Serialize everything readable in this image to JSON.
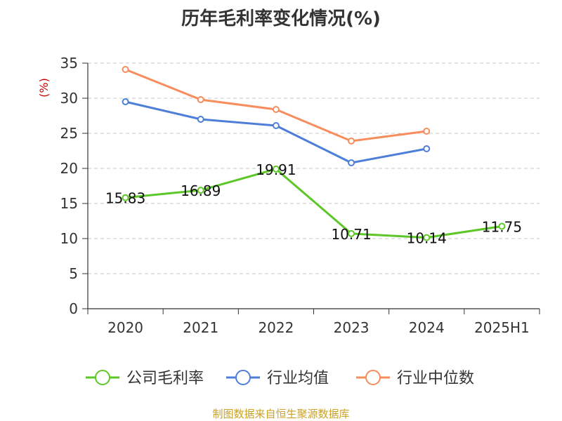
{
  "chart_data": {
    "type": "line",
    "title": "历年毛利率变化情况(%)",
    "ylabel": "(%)",
    "xlabel": "",
    "categories": [
      "2020",
      "2021",
      "2022",
      "2023",
      "2024",
      "2025H1"
    ],
    "ylim": [
      0,
      35
    ],
    "yticks": [
      0,
      5,
      10,
      15,
      20,
      25,
      30,
      35
    ],
    "grid": true,
    "legend_position": "bottom",
    "series": [
      {
        "name": "公司毛利率",
        "color": "#5dc728",
        "show_labels": true,
        "values": [
          15.83,
          16.89,
          19.91,
          10.71,
          10.14,
          11.75
        ]
      },
      {
        "name": "行业均值",
        "color": "#4e7fd8",
        "show_labels": false,
        "values": [
          29.5,
          27.0,
          26.1,
          20.8,
          22.8,
          null
        ]
      },
      {
        "name": "行业中位数",
        "color": "#f78c5c",
        "show_labels": false,
        "values": [
          34.1,
          29.8,
          28.4,
          23.9,
          25.3,
          null
        ]
      }
    ]
  },
  "source_note": "制图数据来自恒生聚源数据库",
  "axis_color": "#333333",
  "ylabel_color": "#cc0000"
}
